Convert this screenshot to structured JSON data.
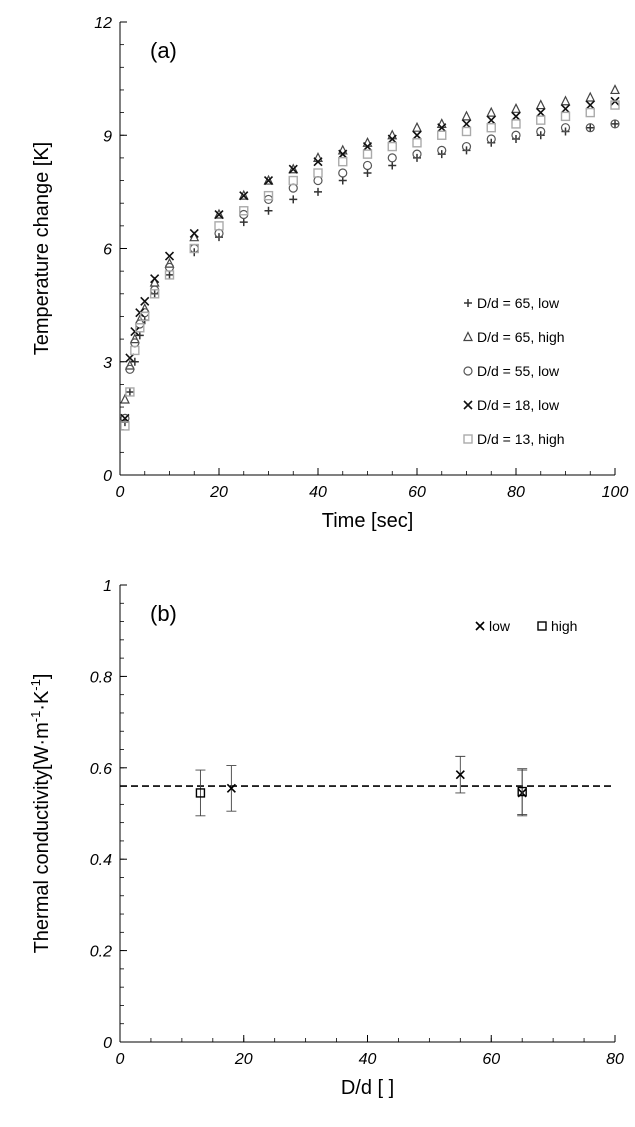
{
  "chart_data": [
    {
      "type": "scatter",
      "panel_label": "(a)",
      "xlabel": "Time [sec]",
      "ylabel": "Temperature change [K]",
      "xlim": [
        0,
        100
      ],
      "ylim": [
        0,
        12
      ],
      "xticks": [
        0,
        20,
        40,
        60,
        80,
        100
      ],
      "yticks": [
        0,
        3,
        6,
        9,
        12
      ],
      "grid": false,
      "legend_position": "bottom-right",
      "series": [
        {
          "name": "D/d = 65, low",
          "marker": "plus",
          "color": "#333333",
          "x": [
            1,
            2,
            3,
            4,
            5,
            7,
            10,
            15,
            20,
            25,
            30,
            35,
            40,
            45,
            50,
            55,
            60,
            65,
            70,
            75,
            80,
            85,
            90,
            95,
            100
          ],
          "y": [
            1.4,
            2.2,
            3.0,
            3.7,
            4.1,
            4.8,
            5.3,
            5.9,
            6.3,
            6.7,
            7.0,
            7.3,
            7.5,
            7.8,
            8.0,
            8.2,
            8.4,
            8.5,
            8.6,
            8.8,
            8.9,
            9.0,
            9.1,
            9.2,
            9.3
          ]
        },
        {
          "name": "D/d = 65, high",
          "marker": "triangle",
          "color": "#444444",
          "x": [
            1,
            2,
            3,
            4,
            5,
            7,
            10,
            15,
            20,
            25,
            30,
            35,
            40,
            45,
            50,
            55,
            60,
            65,
            70,
            75,
            80,
            85,
            90,
            95,
            100
          ],
          "y": [
            2.0,
            2.9,
            3.6,
            4.1,
            4.4,
            5.1,
            5.6,
            6.3,
            6.9,
            7.4,
            7.8,
            8.1,
            8.4,
            8.6,
            8.8,
            9.0,
            9.2,
            9.3,
            9.5,
            9.6,
            9.7,
            9.8,
            9.9,
            10.0,
            10.2
          ]
        },
        {
          "name": "D/d = 55, low",
          "marker": "circle",
          "color": "#555555",
          "x": [
            1,
            2,
            3,
            4,
            5,
            7,
            10,
            15,
            20,
            25,
            30,
            35,
            40,
            45,
            50,
            55,
            60,
            65,
            70,
            75,
            80,
            85,
            90,
            95,
            100
          ],
          "y": [
            1.5,
            2.8,
            3.5,
            4.0,
            4.3,
            4.9,
            5.5,
            6.0,
            6.4,
            6.9,
            7.3,
            7.6,
            7.8,
            8.0,
            8.2,
            8.4,
            8.5,
            8.6,
            8.7,
            8.9,
            9.0,
            9.1,
            9.2,
            9.2,
            9.3
          ]
        },
        {
          "name": "D/d = 18, low",
          "marker": "cross",
          "color": "#111111",
          "x": [
            1,
            2,
            3,
            4,
            5,
            7,
            10,
            15,
            20,
            25,
            30,
            35,
            40,
            45,
            50,
            55,
            60,
            65,
            70,
            75,
            80,
            85,
            90,
            95,
            100
          ],
          "y": [
            1.5,
            3.1,
            3.8,
            4.3,
            4.6,
            5.2,
            5.8,
            6.4,
            6.9,
            7.4,
            7.8,
            8.1,
            8.3,
            8.5,
            8.7,
            8.9,
            9.0,
            9.2,
            9.3,
            9.4,
            9.5,
            9.6,
            9.7,
            9.8,
            9.9
          ]
        },
        {
          "name": "D/d = 13, high",
          "marker": "square",
          "color": "#aaaaaa",
          "x": [
            1,
            2,
            3,
            4,
            5,
            7,
            10,
            15,
            20,
            25,
            30,
            35,
            40,
            45,
            50,
            55,
            60,
            65,
            70,
            75,
            80,
            85,
            90,
            95,
            100
          ],
          "y": [
            1.3,
            2.2,
            3.3,
            3.9,
            4.2,
            4.8,
            5.3,
            6.0,
            6.6,
            7.0,
            7.4,
            7.8,
            8.0,
            8.3,
            8.5,
            8.7,
            8.8,
            9.0,
            9.1,
            9.2,
            9.3,
            9.4,
            9.5,
            9.6,
            9.8
          ]
        }
      ]
    },
    {
      "type": "scatter",
      "panel_label": "(b)",
      "xlabel": "D/d [ ]",
      "ylabel": "Thermal conductivity[W·m",
      "ylabel_sup1": "-1",
      "ylabel_mid": "·K",
      "ylabel_sup2": "-1",
      "ylabel_end": "]",
      "xlim": [
        0,
        80
      ],
      "ylim": [
        0,
        1
      ],
      "xticks": [
        0,
        20,
        40,
        60,
        80
      ],
      "yticks": [
        0,
        0.2,
        0.4,
        0.6,
        0.8,
        1
      ],
      "ytick_labels": [
        "0",
        "0.2",
        "0.4",
        "0.6",
        "0.8",
        "1"
      ],
      "grid": false,
      "legend_position": "top-right",
      "reference_line_y": 0.56,
      "series": [
        {
          "name": "low",
          "marker": "cross",
          "color": "#000000",
          "x": [
            18,
            55,
            65
          ],
          "y": [
            0.555,
            0.585,
            0.545
          ],
          "err": [
            0.05,
            0.04,
            0.05
          ]
        },
        {
          "name": "high",
          "marker": "square",
          "color": "#000000",
          "x": [
            13,
            65
          ],
          "y": [
            0.545,
            0.548
          ],
          "err": [
            0.05,
            0.05
          ]
        }
      ]
    }
  ]
}
